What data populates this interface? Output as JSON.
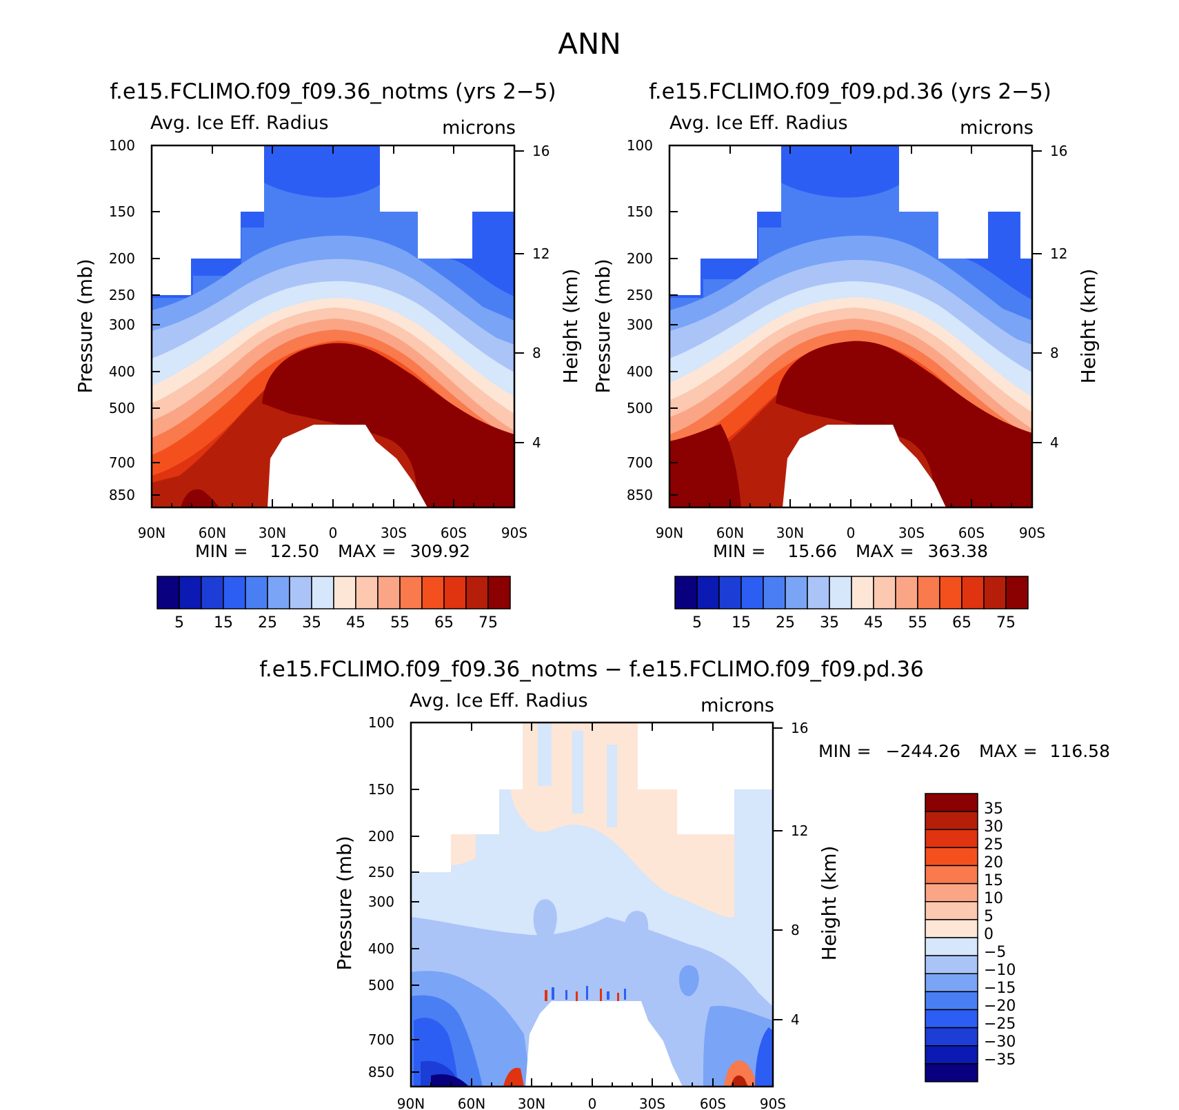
{
  "figure_title": "ANN",
  "chart_data": [
    {
      "type": "heatmap",
      "title": "f.e15.FCLIMO.f09_f09.36_notms (yrs 2−5)",
      "variable_label": "Avg. Ice Eff. Radius",
      "units_label": "microns",
      "ylabel": "Pressure (mb)",
      "ylabel2": "Height (km)",
      "x_ticks": [
        "90N",
        "60N",
        "30N",
        "0",
        "30S",
        "60S",
        "90S"
      ],
      "y_ticks": [
        "100",
        "150",
        "200",
        "250",
        "300",
        "400",
        "500",
        "700",
        "850"
      ],
      "y2_ticks": [
        "16",
        "12",
        "8",
        "4"
      ],
      "stats": {
        "min_label": "MIN =",
        "min": "12.50",
        "max_label": "MAX =",
        "max": "309.92"
      },
      "colorbar": {
        "orientation": "horizontal",
        "labels": [
          "5",
          "15",
          "25",
          "35",
          "45",
          "55",
          "65",
          "75"
        ]
      }
    },
    {
      "type": "heatmap",
      "title": "f.e15.FCLIMO.f09_f09.pd.36 (yrs 2−5)",
      "variable_label": "Avg. Ice Eff. Radius",
      "units_label": "microns",
      "ylabel": "Pressure (mb)",
      "ylabel2": "Height (km)",
      "x_ticks": [
        "90N",
        "60N",
        "30N",
        "0",
        "30S",
        "60S",
        "90S"
      ],
      "y_ticks": [
        "100",
        "150",
        "200",
        "250",
        "300",
        "400",
        "500",
        "700",
        "850"
      ],
      "y2_ticks": [
        "16",
        "12",
        "8",
        "4"
      ],
      "stats": {
        "min_label": "MIN =",
        "min": "15.66",
        "max_label": "MAX =",
        "max": "363.38"
      },
      "colorbar": {
        "orientation": "horizontal",
        "labels": [
          "5",
          "15",
          "25",
          "35",
          "45",
          "55",
          "65",
          "75"
        ]
      }
    },
    {
      "type": "heatmap",
      "title": "f.e15.FCLIMO.f09_f09.36_notms − f.e15.FCLIMO.f09_f09.pd.36",
      "variable_label": "Avg. Ice Eff. Radius",
      "units_label": "microns",
      "ylabel": "Pressure (mb)",
      "ylabel2": "Height (km)",
      "x_ticks": [
        "90N",
        "60N",
        "30N",
        "0",
        "30S",
        "60S",
        "90S"
      ],
      "y_ticks": [
        "100",
        "150",
        "200",
        "250",
        "300",
        "400",
        "500",
        "700",
        "850"
      ],
      "y2_ticks": [
        "16",
        "12",
        "8",
        "4"
      ],
      "stats": {
        "min_label": "MIN =",
        "min": "−244.26",
        "max_label": "MAX =",
        "max": "116.58"
      },
      "colorbar": {
        "orientation": "vertical",
        "labels": [
          "35",
          "30",
          "25",
          "20",
          "15",
          "10",
          "5",
          "0",
          "−5",
          "−10",
          "−15",
          "−20",
          "−25",
          "−30",
          "−35"
        ]
      }
    }
  ],
  "colors": {
    "seq": [
      "#08007e",
      "#0a1ab2",
      "#1c3ed6",
      "#2d5ef4",
      "#4a7ff4",
      "#7aa4f6",
      "#aac4f8",
      "#d6e6fb",
      "#fde6d6",
      "#fcc8b0",
      "#fba587",
      "#f97a4d",
      "#f4501e",
      "#e03310",
      "#b51f0a",
      "#8b0000"
    ],
    "diff": [
      "#08007e",
      "#0a1ab2",
      "#1c3ed6",
      "#2d5ef4",
      "#4a7ff4",
      "#7aa4f6",
      "#aac4f8",
      "#d6e6fb",
      "#fde6d6",
      "#fcc8b0",
      "#fba587",
      "#f97a4d",
      "#f4501e",
      "#e03310",
      "#b51f0a",
      "#8b0000"
    ]
  }
}
